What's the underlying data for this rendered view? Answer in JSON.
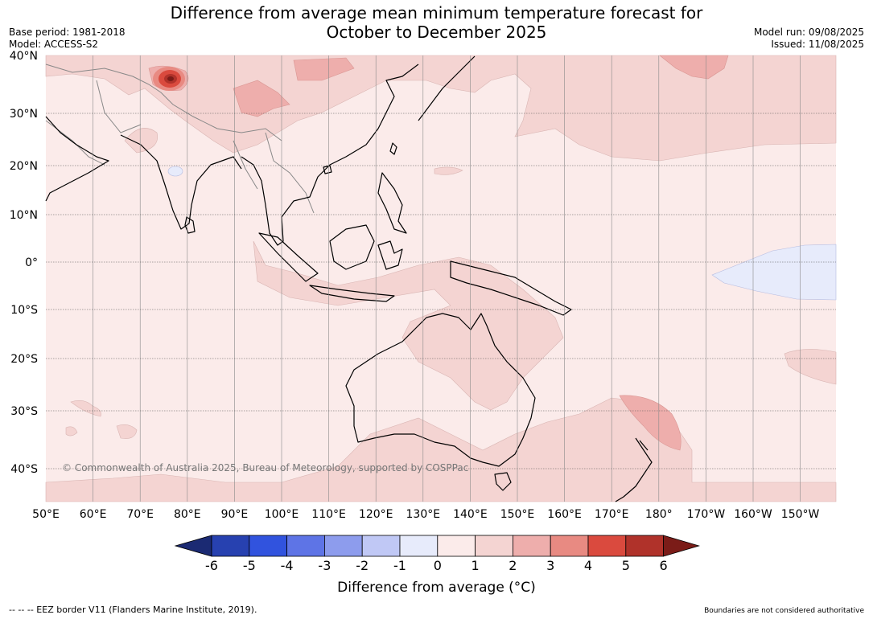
{
  "title": {
    "line1": "Difference from average mean minimum temperature forecast for",
    "line2": "October to December 2025"
  },
  "meta": {
    "base_period": "Base period: 1981-2018",
    "model": "Model: ACCESS-S2",
    "model_run": "Model run: 09/08/2025",
    "issued": "Issued: 11/08/2025"
  },
  "map": {
    "lon_labels": [
      "50°E",
      "60°E",
      "70°E",
      "80°E",
      "90°E",
      "100°E",
      "110°E",
      "120°E",
      "130°E",
      "140°E",
      "150°E",
      "160°E",
      "170°E",
      "180°",
      "170°W",
      "160°W",
      "150°W"
    ],
    "lat_labels": [
      "40°N",
      "30°N",
      "20°N",
      "10°N",
      "0°",
      "10°S",
      "20°S",
      "30°S",
      "40°S"
    ],
    "copyright": "© Commonwealth of Australia 2025, Bureau of Meteorology, supported by COSPPac",
    "colors": {
      "background_anomaly_0_1": "#fbebea",
      "anomaly_1_2": "#f4d4d2",
      "anomaly_2_3": "#eeaeac",
      "anomaly_neg1_0": "#e7ebfb",
      "land_outline": "#000000",
      "country_border": "#888888",
      "grid": "#555555"
    }
  },
  "colorbar": {
    "ticks": [
      "-6",
      "-5",
      "-4",
      "-3",
      "-2",
      "-1",
      "0",
      "1",
      "2",
      "3",
      "4",
      "5",
      "6"
    ],
    "colors": [
      "#1b2a73",
      "#2741b0",
      "#3153de",
      "#5e74e6",
      "#8d9ced",
      "#c0c8f5",
      "#e7ebfb",
      "#fbebea",
      "#f4d4d2",
      "#eeaeac",
      "#e88a82",
      "#da4a3e",
      "#b0322a",
      "#7b1c18"
    ],
    "label": "Difference from average (°C)"
  },
  "footer": {
    "eez": "--  --  -- EEZ border V11 (Flanders Marine Institute, 2019).",
    "boundaries": "Boundaries are not considered authoritative"
  }
}
